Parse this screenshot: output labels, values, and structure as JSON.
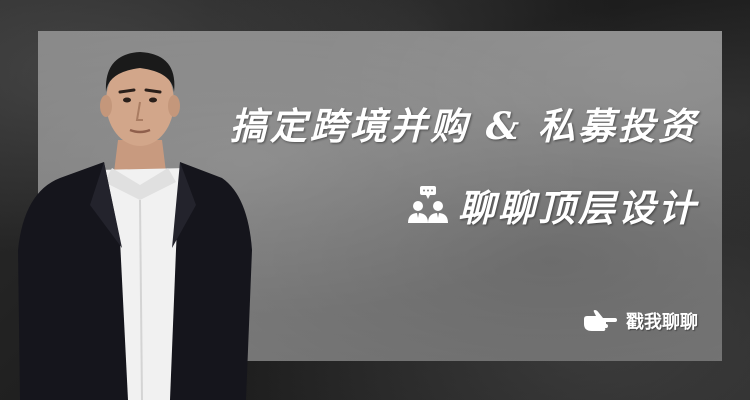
{
  "banner": {
    "headline": "搞定跨境并购 & 私募投资",
    "subline": "聊聊顶层设计",
    "cta_label": "戳我聊聊"
  },
  "icons": {
    "people": "people-talking-icon",
    "cta": "pointing-hand-icon"
  },
  "colors": {
    "background": "#232323",
    "panel": "#808080",
    "text": "#ffffff"
  }
}
